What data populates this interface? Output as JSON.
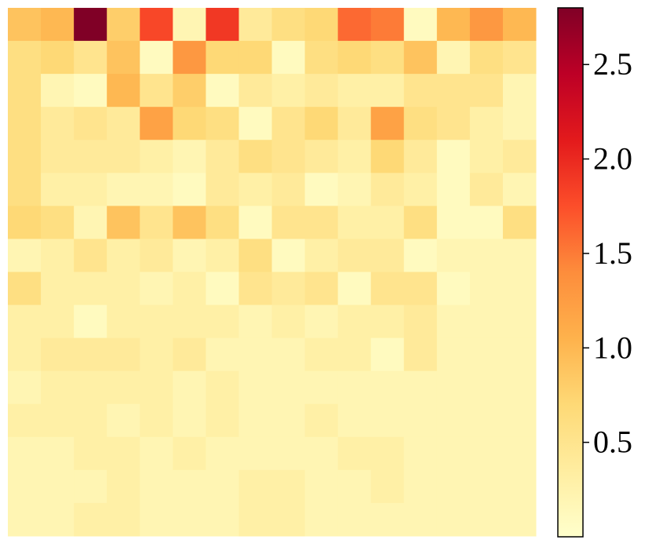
{
  "chart_data": {
    "type": "heatmap",
    "title": "",
    "xlabel": "",
    "ylabel": "",
    "rows": 16,
    "cols": 16,
    "colormap": "YlOrRd",
    "color_range": [
      0.0,
      2.8
    ],
    "colorbar": {
      "ticks": [
        0.5,
        1.0,
        1.5,
        2.0,
        2.5
      ],
      "tick_labels": [
        "0.5",
        "1.0",
        "1.5",
        "2.0",
        "2.5"
      ]
    },
    "values": [
      [
        0.9,
        1.0,
        2.8,
        0.8,
        1.8,
        0.2,
        1.9,
        0.4,
        0.6,
        0.7,
        1.6,
        1.5,
        0.1,
        1.0,
        1.3,
        1.0
      ],
      [
        0.6,
        0.7,
        0.5,
        0.9,
        0.1,
        1.3,
        0.7,
        0.7,
        0.1,
        0.6,
        0.7,
        0.6,
        0.9,
        0.2,
        0.6,
        0.5
      ],
      [
        0.6,
        0.2,
        0.1,
        1.0,
        0.5,
        0.8,
        0.1,
        0.4,
        0.3,
        0.4,
        0.3,
        0.3,
        0.5,
        0.5,
        0.5,
        0.2
      ],
      [
        0.6,
        0.4,
        0.5,
        0.4,
        1.2,
        0.7,
        0.6,
        0.1,
        0.5,
        0.7,
        0.4,
        1.2,
        0.6,
        0.5,
        0.3,
        0.2
      ],
      [
        0.6,
        0.4,
        0.4,
        0.4,
        0.3,
        0.2,
        0.4,
        0.6,
        0.5,
        0.4,
        0.3,
        0.7,
        0.4,
        0.1,
        0.3,
        0.4
      ],
      [
        0.6,
        0.3,
        0.3,
        0.2,
        0.2,
        0.1,
        0.4,
        0.3,
        0.4,
        0.1,
        0.2,
        0.4,
        0.3,
        0.1,
        0.4,
        0.2
      ],
      [
        0.7,
        0.6,
        0.2,
        0.9,
        0.5,
        0.9,
        0.6,
        0.1,
        0.5,
        0.5,
        0.3,
        0.3,
        0.6,
        0.1,
        0.1,
        0.6
      ],
      [
        0.2,
        0.3,
        0.5,
        0.3,
        0.4,
        0.2,
        0.3,
        0.6,
        0.1,
        0.3,
        0.4,
        0.4,
        0.1,
        0.2,
        0.2,
        0.2
      ],
      [
        0.6,
        0.3,
        0.3,
        0.3,
        0.2,
        0.3,
        0.1,
        0.5,
        0.4,
        0.5,
        0.1,
        0.5,
        0.5,
        0.1,
        0.2,
        0.2
      ],
      [
        0.3,
        0.3,
        0.1,
        0.3,
        0.3,
        0.3,
        0.3,
        0.2,
        0.3,
        0.2,
        0.3,
        0.3,
        0.4,
        0.2,
        0.2,
        0.2
      ],
      [
        0.3,
        0.4,
        0.4,
        0.4,
        0.3,
        0.4,
        0.2,
        0.2,
        0.2,
        0.3,
        0.3,
        0.1,
        0.4,
        0.2,
        0.2,
        0.2
      ],
      [
        0.2,
        0.3,
        0.3,
        0.3,
        0.3,
        0.2,
        0.3,
        0.2,
        0.2,
        0.2,
        0.2,
        0.2,
        0.2,
        0.2,
        0.2,
        0.2
      ],
      [
        0.3,
        0.3,
        0.3,
        0.2,
        0.3,
        0.2,
        0.3,
        0.2,
        0.2,
        0.3,
        0.2,
        0.2,
        0.2,
        0.2,
        0.2,
        0.2
      ],
      [
        0.2,
        0.2,
        0.3,
        0.3,
        0.2,
        0.3,
        0.2,
        0.2,
        0.2,
        0.2,
        0.3,
        0.3,
        0.2,
        0.2,
        0.2,
        0.2
      ],
      [
        0.2,
        0.2,
        0.2,
        0.3,
        0.2,
        0.2,
        0.2,
        0.3,
        0.3,
        0.2,
        0.2,
        0.3,
        0.2,
        0.2,
        0.2,
        0.2
      ],
      [
        0.2,
        0.2,
        0.3,
        0.3,
        0.2,
        0.2,
        0.2,
        0.3,
        0.3,
        0.2,
        0.2,
        0.2,
        0.2,
        0.2,
        0.2,
        0.2
      ]
    ]
  }
}
